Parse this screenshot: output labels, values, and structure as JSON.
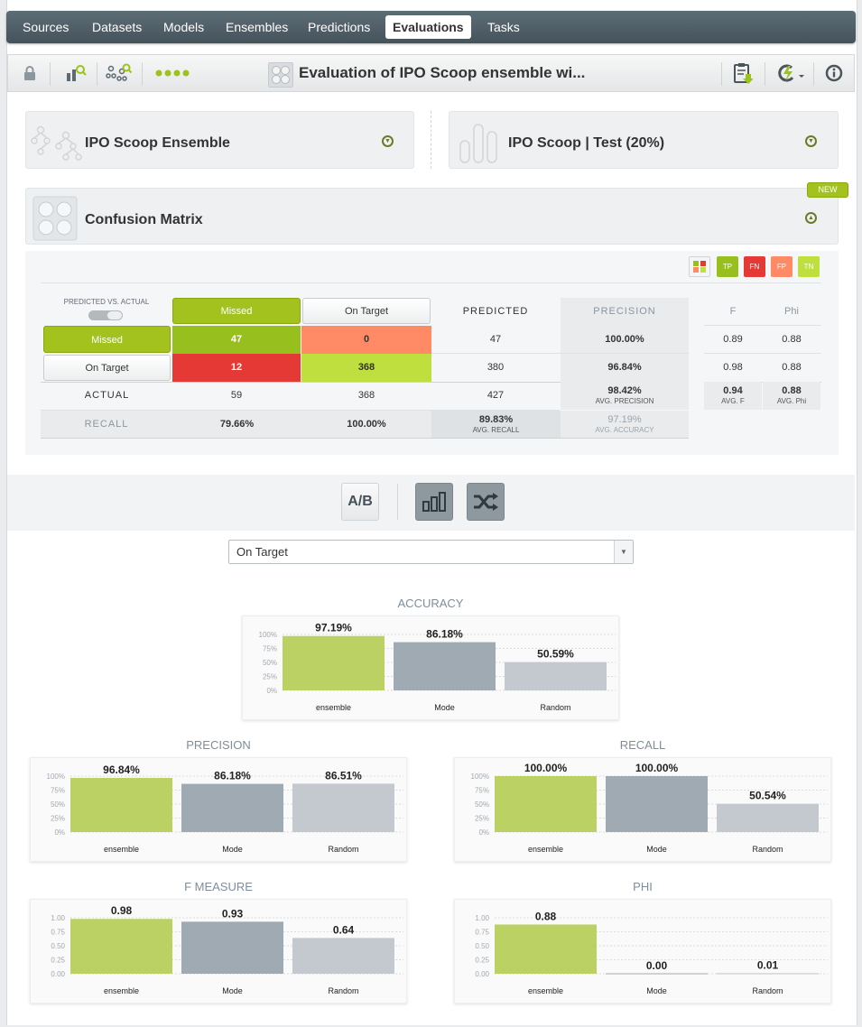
{
  "nav": {
    "items": [
      "Sources",
      "Datasets",
      "Models",
      "Ensembles",
      "Predictions",
      "Evaluations",
      "Tasks"
    ],
    "active": "Evaluations"
  },
  "toolbar": {
    "title": "Evaluation of IPO Scoop ensemble wi..."
  },
  "model_panel": {
    "title": "IPO Scoop Ensemble"
  },
  "dataset_panel": {
    "title": "IPO Scoop | Test (20%)"
  },
  "matrix_panel": {
    "title": "Confusion Matrix",
    "badge": "NEW"
  },
  "legend": {
    "tp": "TP",
    "fn": "FN",
    "fp": "FP",
    "tn": "TN"
  },
  "matrix": {
    "toggle_label": "PREDICTED VS. ACTUAL",
    "col_missed": "Missed",
    "col_ontarget": "On Target",
    "predicted_label": "PREDICTED",
    "precision_label": "PRECISION",
    "f_label": "F",
    "phi_label": "Phi",
    "row_missed": "Missed",
    "row_ontarget": "On Target",
    "actual_label": "ACTUAL",
    "recall_label": "RECALL",
    "rows": [
      [
        "47",
        "0",
        "47",
        "100.00%",
        "0.89",
        "0.88"
      ],
      [
        "12",
        "368",
        "380",
        "96.84%",
        "0.98",
        "0.88"
      ]
    ],
    "actual_row": [
      "59",
      "368",
      "427"
    ],
    "avg_precision": "98.42%",
    "avg_precision_label": "AVG. PRECISION",
    "avg_f": "0.94",
    "avg_f_label": "AVG. F",
    "avg_phi": "0.88",
    "avg_phi_label": "AVG. Phi",
    "recall_row": [
      "79.66%",
      "100.00%"
    ],
    "avg_recall": "89.83%",
    "avg_recall_label": "AVG. RECALL",
    "avg_accuracy": "97.19%",
    "avg_accuracy_label": "AVG. ACCURACY"
  },
  "compare_buttons": {
    "ab": "A/B"
  },
  "class_select": {
    "value": "On Target"
  },
  "colors": {
    "ensemble": "#bbd163",
    "mode": "#a0aab2",
    "random": "#c4c9d0",
    "tp": "#97c01e",
    "fn": "#e53935",
    "fp": "#ff8a65",
    "tn": "#bfdf3e"
  },
  "chart_data": [
    {
      "type": "bar",
      "title": "ACCURACY",
      "categories": [
        "ensemble",
        "Mode",
        "Random"
      ],
      "values": [
        97.19,
        86.18,
        50.59
      ],
      "labels": [
        "97.19%",
        "86.18%",
        "50.59%"
      ],
      "ylim": [
        0,
        100
      ],
      "yticks": [
        "100%",
        "75%",
        "50%",
        "25%",
        "0%"
      ]
    },
    {
      "type": "bar",
      "title": "PRECISION",
      "categories": [
        "ensemble",
        "Mode",
        "Random"
      ],
      "values": [
        96.84,
        86.18,
        86.51
      ],
      "labels": [
        "96.84%",
        "86.18%",
        "86.51%"
      ],
      "ylim": [
        0,
        100
      ],
      "yticks": [
        "100%",
        "75%",
        "50%",
        "25%",
        "0%"
      ]
    },
    {
      "type": "bar",
      "title": "RECALL",
      "categories": [
        "ensemble",
        "Mode",
        "Random"
      ],
      "values": [
        100,
        100,
        50.54
      ],
      "labels": [
        "100.00%",
        "100.00%",
        "50.54%"
      ],
      "ylim": [
        0,
        100
      ],
      "yticks": [
        "100%",
        "75%",
        "50%",
        "25%",
        "0%"
      ]
    },
    {
      "type": "bar",
      "title": "F MEASURE",
      "categories": [
        "ensemble",
        "Mode",
        "Random"
      ],
      "values": [
        0.98,
        0.93,
        0.64
      ],
      "labels": [
        "0.98",
        "0.93",
        "0.64"
      ],
      "ylim": [
        0,
        1
      ],
      "yticks": [
        "1.00",
        "0.75",
        "0.50",
        "0.25",
        "0.00"
      ]
    },
    {
      "type": "bar",
      "title": "PHI",
      "categories": [
        "ensemble",
        "Mode",
        "Random"
      ],
      "values": [
        0.88,
        0.0,
        0.01
      ],
      "labels": [
        "0.88",
        "0.00",
        "0.01"
      ],
      "ylim": [
        0,
        1
      ],
      "yticks": [
        "1.00",
        "0.75",
        "0.50",
        "0.25",
        "0.00"
      ]
    }
  ]
}
